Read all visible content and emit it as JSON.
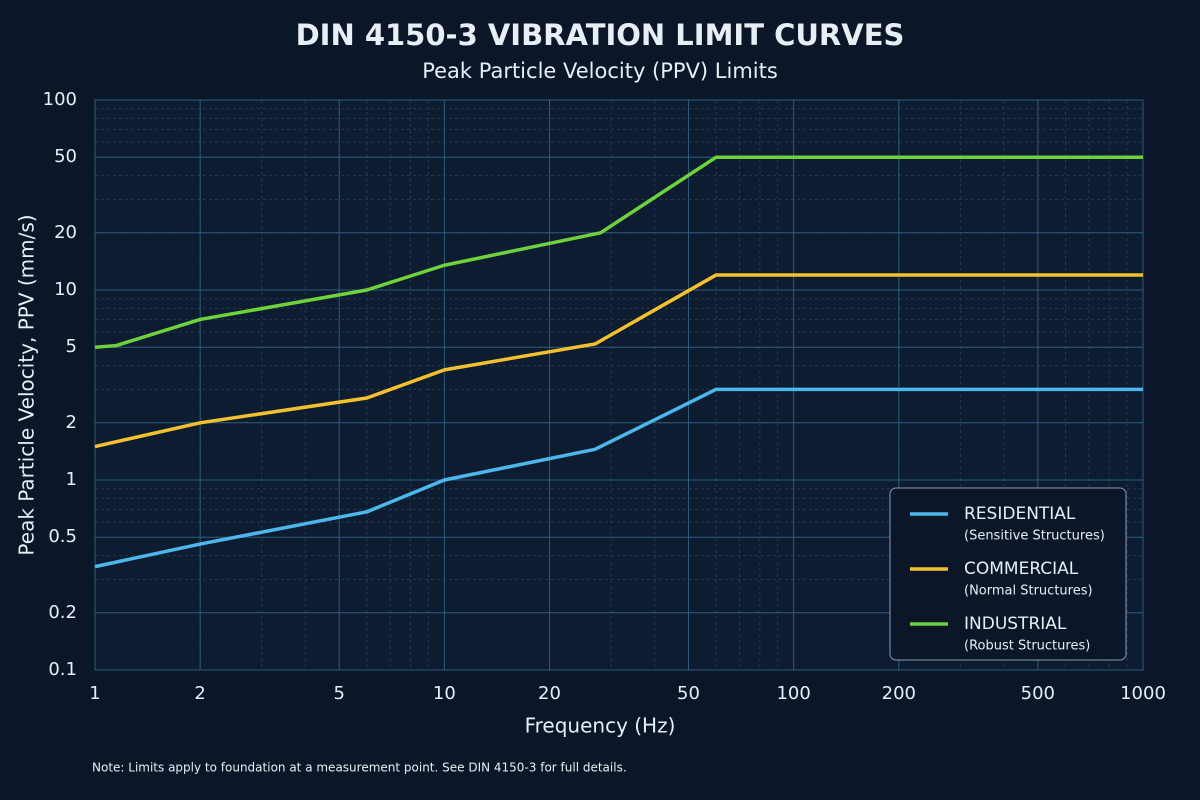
{
  "chart_data": {
    "type": "line",
    "title": "DIN 4150-3 VIBRATION LIMIT CURVES",
    "subtitle": "Peak Particle Velocity (PPV) Limits",
    "x_label": "Frequency (Hz)",
    "y_label": "Peak Particle Velocity, PPV (mm/s)",
    "log_x": true,
    "log_y": true,
    "grid": true,
    "minor_grid": true,
    "xlim": [
      1,
      1000
    ],
    "xticks": [
      1,
      2,
      5,
      10,
      20,
      50,
      100,
      200,
      500,
      1000
    ],
    "ylim": [
      0.1,
      100
    ],
    "yticks": [
      0.1,
      0.2,
      0.5,
      1,
      2,
      5,
      10,
      20,
      50,
      100
    ],
    "legend": "lower right",
    "series": [
      {
        "name": "RESIDENTIAL",
        "description": "(Sensitive Structures)",
        "color": "#4db6ea",
        "x": [
          1,
          2,
          6,
          10,
          27,
          60,
          1000
        ],
        "values": [
          0.35,
          0.46,
          0.68,
          1,
          1.45,
          3,
          3
        ]
      },
      {
        "name": "COMMERCIAL",
        "description": "(Normal Structures)",
        "color": "#f3c12e",
        "x": [
          1,
          2,
          6,
          10,
          27,
          60,
          1000
        ],
        "values": [
          1.5,
          2,
          2.7,
          3.8,
          5.2,
          12,
          12
        ]
      },
      {
        "name": "INDUSTRIAL",
        "description": "(Robust Structures)",
        "color": "#6fd13b",
        "x": [
          1,
          1.15,
          2,
          6,
          10,
          28,
          60,
          1000
        ],
        "values": [
          5,
          5.1,
          7,
          10,
          13.5,
          20,
          50,
          50
        ]
      }
    ],
    "note": "Note: Limits apply to foundation at a measurement point. See DIN 4150-3 for full details."
  }
}
